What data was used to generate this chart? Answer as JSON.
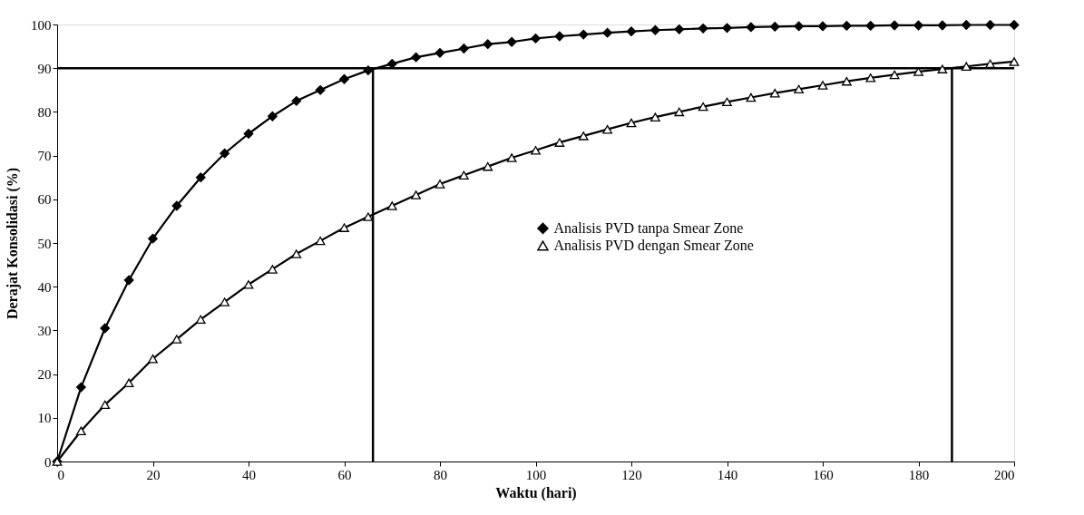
{
  "chart_data": {
    "type": "line",
    "xlabel": "Waktu (hari)",
    "ylabel": "Derajat Konsolidasi (%)",
    "x": [
      0,
      5,
      10,
      15,
      20,
      25,
      30,
      35,
      40,
      45,
      50,
      55,
      60,
      65,
      70,
      75,
      80,
      85,
      90,
      95,
      100,
      105,
      110,
      115,
      120,
      125,
      130,
      135,
      140,
      145,
      150,
      155,
      160,
      165,
      170,
      175,
      180,
      185,
      190,
      195,
      200
    ],
    "series": [
      {
        "name": "Analisis PVD tanpa Smear Zone",
        "color": "#000000",
        "marker": "diamond",
        "values": [
          0,
          17,
          30.5,
          41.5,
          51,
          58.5,
          65,
          70.5,
          75,
          79,
          82.5,
          85,
          87.5,
          89.5,
          91,
          92.5,
          93.5,
          94.5,
          95.5,
          96,
          96.8,
          97.3,
          97.7,
          98.1,
          98.4,
          98.7,
          98.9,
          99.1,
          99.2,
          99.4,
          99.5,
          99.6,
          99.6,
          99.7,
          99.7,
          99.8,
          99.8,
          99.8,
          99.9,
          99.9,
          99.9
        ]
      },
      {
        "name": "Analisis PVD dengan Smear Zone",
        "color": "#000000",
        "marker": "triangle",
        "values": [
          0,
          7,
          13,
          18,
          23.5,
          28,
          32.5,
          36.5,
          40.5,
          44,
          47.5,
          50.5,
          53.5,
          56,
          58.5,
          61,
          63.5,
          65.5,
          67.5,
          69.5,
          71.2,
          73,
          74.5,
          76,
          77.5,
          78.8,
          80,
          81.2,
          82.3,
          83.3,
          84.3,
          85.2,
          86.1,
          87,
          87.8,
          88.5,
          89.2,
          89.8,
          90.4,
          91,
          91.5
        ]
      }
    ],
    "xlim": [
      0,
      200
    ],
    "xticks": [
      0,
      20,
      40,
      60,
      80,
      100,
      120,
      140,
      160,
      180,
      200
    ],
    "ylim": [
      0,
      100
    ],
    "yticks": [
      0,
      10,
      20,
      30,
      40,
      50,
      60,
      70,
      80,
      90,
      100
    ],
    "ref_lines": [
      {
        "axis": "y",
        "value": 90
      },
      {
        "axis": "x",
        "value": 66
      },
      {
        "axis": "x",
        "value": 187
      }
    ],
    "grid": false,
    "legend": "right",
    "line_style": "solid"
  }
}
